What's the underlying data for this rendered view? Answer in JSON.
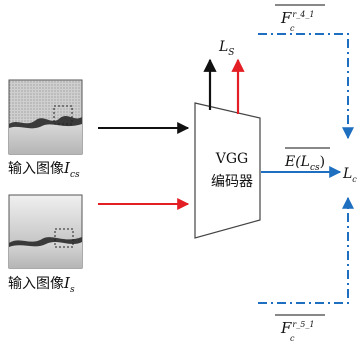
{
  "inputs": [
    {
      "label": "输入图像",
      "symbol": "I",
      "subscript": "cs"
    },
    {
      "label": "输入图像",
      "symbol": "I",
      "subscript": "s"
    }
  ],
  "encoder": {
    "line1": "VGG",
    "line2": "编码器"
  },
  "outputs": {
    "style_loss": {
      "symbol": "L",
      "subscript": "S"
    },
    "feature_top": {
      "symbol": "F",
      "subscript": "c",
      "superscript": "r_4_1"
    },
    "feature_bottom": {
      "symbol": "F",
      "subscript": "c",
      "superscript": "r_5_1"
    },
    "encoded": {
      "text": "E(L",
      "subscript": "cs",
      "suffix": ")"
    },
    "right_label": {
      "symbol": "L",
      "subscript": "c"
    }
  },
  "colors": {
    "black_arrow": "#111111",
    "red_arrow": "#e31e24",
    "blue_arrow": "#1f6fc0"
  }
}
